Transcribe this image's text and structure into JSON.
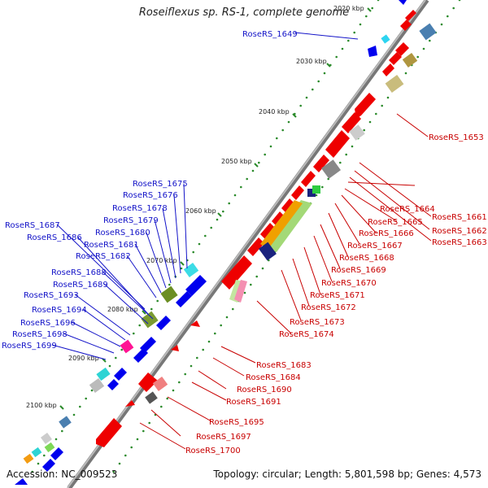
{
  "title": "Roseiflexus sp. RS-1, complete genome",
  "accession": "Accession: NC_009523",
  "summary": "Topology: circular; Length: 5,801,598 bp; Genes: 4,573",
  "ticks": [
    "2020 kbp",
    "2030 kbp",
    "2040 kbp",
    "2050 kbp",
    "2060 kbp",
    "2070 kbp",
    "2080 kbp",
    "2090 kbp",
    "2100 kbp"
  ],
  "labels_left": [
    "RoseRS_1649",
    "RoseRS_1675",
    "RoseRS_1676",
    "RoseRS_1678",
    "RoseRS_1679",
    "RoseRS_1680",
    "RoseRS_1681",
    "RoseRS_1682",
    "RoseRS_1687",
    "RoseRS_1686",
    "RoseRS_1688",
    "RoseRS_1689",
    "RoseRS_1693",
    "RoseRS_1694",
    "RoseRS_1696",
    "RoseRS_1698",
    "RoseRS_1699"
  ],
  "labels_right": [
    "RoseRS_1653",
    "RoseRS_1664",
    "RoseRS_1661",
    "RoseRS_1665",
    "RoseRS_1662",
    "RoseRS_1666",
    "RoseRS_1663",
    "RoseRS_1667",
    "RoseRS_1668",
    "RoseRS_1669",
    "RoseRS_1670",
    "RoseRS_1671",
    "RoseRS_1672",
    "RoseRS_1673",
    "RoseRS_1674",
    "RoseRS_1683",
    "RoseRS_1684",
    "RoseRS_1690",
    "RoseRS_1691",
    "RoseRS_1695",
    "RoseRS_1697",
    "RoseRS_1700"
  ],
  "colors": {
    "backbone": "#888888",
    "forward": "#0000ee",
    "reverse": "#ee0000",
    "label_left": "#1414c8",
    "label_right": "#c80000",
    "tick": "#2a8a2a"
  }
}
